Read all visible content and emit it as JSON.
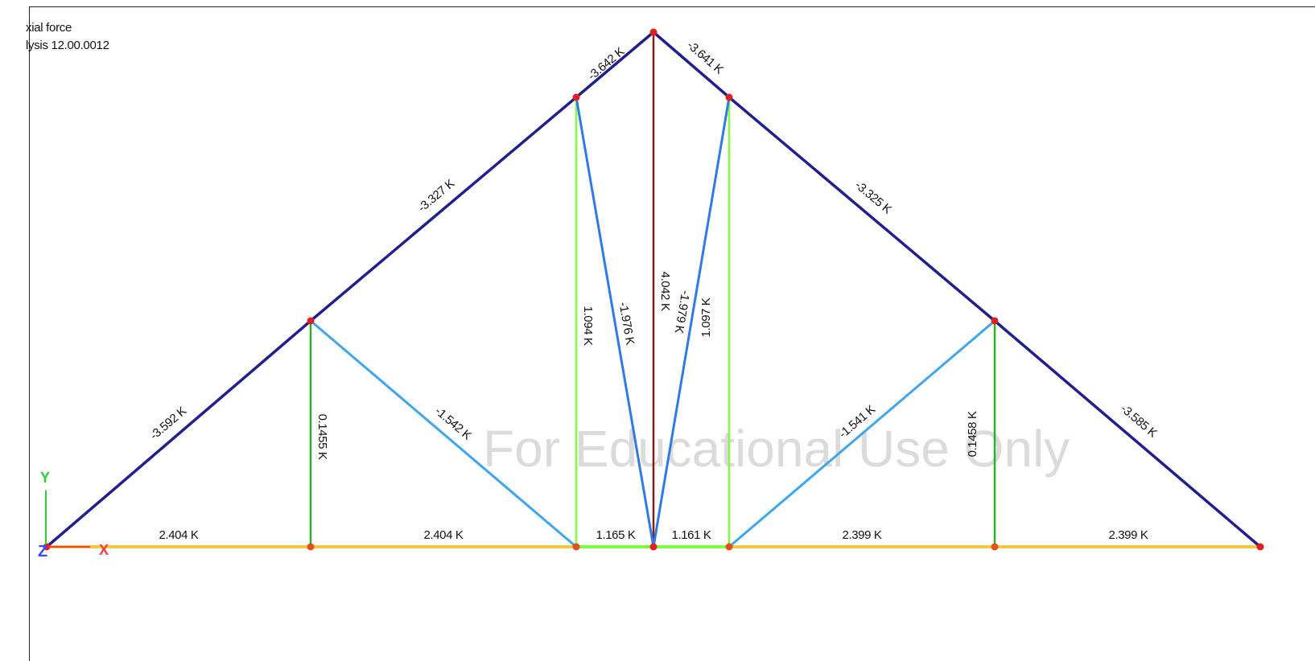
{
  "header": {
    "line1": "xial force",
    "line2": "lysis 12.00.0012"
  },
  "watermark": "For Educational Use Only",
  "axes": {
    "y_label": "Y",
    "x_label": "X",
    "z_label": "Z"
  },
  "colors": {
    "top_chord": "#1f1f8f",
    "bottom_chord": "#f5c842",
    "bottom_chord_center": "#7fff3f",
    "vertical": "#28b428",
    "vertical_center": "#8b1a1a",
    "diagonal": "#2f9be6",
    "diagonal_center": "#2f7be6",
    "node": "#e02020",
    "axis_x": "#ff3b3b",
    "axis_y": "#2fcf2f",
    "axis_z": "#3050ff"
  },
  "members": [
    {
      "id": "top-left-lower",
      "label": "-3.592 K"
    },
    {
      "id": "top-left-upper",
      "label": "-3.327 K"
    },
    {
      "id": "top-left-apex",
      "label": "-3.642 K"
    },
    {
      "id": "top-right-apex",
      "label": "-3.641 K"
    },
    {
      "id": "top-right-upper",
      "label": "-3.325 K"
    },
    {
      "id": "top-right-lower",
      "label": "-3.585 K"
    },
    {
      "id": "bottom-1",
      "label": "2.404 K"
    },
    {
      "id": "bottom-2",
      "label": "2.404 K"
    },
    {
      "id": "bottom-3",
      "label": "1.165 K"
    },
    {
      "id": "bottom-4",
      "label": "1.161 K"
    },
    {
      "id": "bottom-5",
      "label": "2.399 K"
    },
    {
      "id": "bottom-6",
      "label": "2.399 K"
    },
    {
      "id": "vertical-left",
      "label": "0.1455 K"
    },
    {
      "id": "vertical-left-center",
      "label": "1.094 K"
    },
    {
      "id": "vertical-center",
      "label": "4.042 K"
    },
    {
      "id": "vertical-right-center",
      "label": "1.097 K"
    },
    {
      "id": "vertical-right",
      "label": "0.1458 K"
    },
    {
      "id": "diagonal-left",
      "label": "-1.542 K"
    },
    {
      "id": "diagonal-left-center",
      "label": "-1.976 K"
    },
    {
      "id": "diagonal-right-center",
      "label": "-1.979 K"
    },
    {
      "id": "diagonal-right",
      "label": "-1.541 K"
    }
  ]
}
